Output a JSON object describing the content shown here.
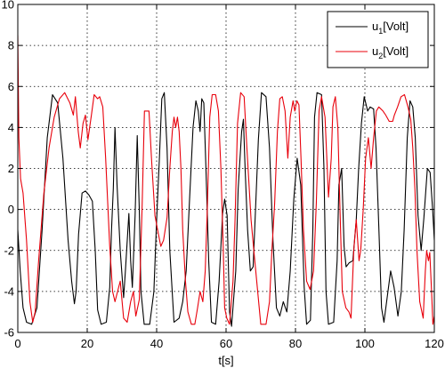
{
  "chart_data": {
    "type": "line",
    "title": "",
    "xlabel": "t[s]",
    "ylabel": "",
    "xlim": [
      0,
      120
    ],
    "ylim": [
      -6,
      10
    ],
    "xticks": [
      0,
      20,
      40,
      60,
      80,
      100,
      120
    ],
    "yticks": [
      -6,
      -4,
      -2,
      0,
      2,
      4,
      6,
      8,
      10
    ],
    "grid": true,
    "legend_position": "top-right",
    "series": [
      {
        "name": "u₁[Volt]",
        "legend_main": "u",
        "legend_sub": "1",
        "legend_suffix": "[Volt]",
        "color": "#000000",
        "points": [
          [
            0,
            -1.0
          ],
          [
            0.7,
            -3.0
          ],
          [
            1.5,
            -4.8
          ],
          [
            2.5,
            -5.5
          ],
          [
            4,
            -5.6
          ],
          [
            5.5,
            -4.8
          ],
          [
            7,
            -1.0
          ],
          [
            8.5,
            3.5
          ],
          [
            10,
            5.6
          ],
          [
            11.5,
            5.2
          ],
          [
            13,
            2.5
          ],
          [
            14.5,
            -1.5
          ],
          [
            15.5,
            -3.5
          ],
          [
            16.3,
            -4.6
          ],
          [
            16.8,
            -4.0
          ],
          [
            17.5,
            -1.2
          ],
          [
            18.5,
            0.8
          ],
          [
            19.5,
            0.9
          ],
          [
            20.5,
            0.7
          ],
          [
            21.5,
            0.4
          ],
          [
            22.3,
            -2.0
          ],
          [
            23,
            -4.9
          ],
          [
            24,
            -5.6
          ],
          [
            25.5,
            -5.5
          ],
          [
            26.5,
            -3.8
          ],
          [
            27,
            -1.0
          ],
          [
            27.5,
            1.0
          ],
          [
            28,
            4.0
          ],
          [
            28.6,
            1.2
          ],
          [
            29.5,
            -2.0
          ],
          [
            30.5,
            -4.3
          ],
          [
            31,
            -3.0
          ],
          [
            32,
            -0.2
          ],
          [
            32.5,
            -2.5
          ],
          [
            33,
            -3.8
          ],
          [
            33.8,
            -0.3
          ],
          [
            34.4,
            3.6
          ],
          [
            35,
            0.0
          ],
          [
            35.5,
            -4.0
          ],
          [
            36.4,
            -5.6
          ],
          [
            38,
            -5.6
          ],
          [
            39.2,
            -4.0
          ],
          [
            40,
            -0.5
          ],
          [
            40.8,
            2.5
          ],
          [
            41.5,
            5.4
          ],
          [
            42.2,
            5.7
          ],
          [
            43,
            3.0
          ],
          [
            43.8,
            -2.0
          ],
          [
            45,
            -5.5
          ],
          [
            46.5,
            -5.3
          ],
          [
            47.5,
            -4.5
          ],
          [
            48.5,
            -3.0
          ],
          [
            49.5,
            0.5
          ],
          [
            50.5,
            4.0
          ],
          [
            51.3,
            5.3
          ],
          [
            52,
            4.8
          ],
          [
            52.5,
            3.8
          ],
          [
            53,
            5.4
          ],
          [
            53.6,
            5.2
          ],
          [
            54.2,
            2.0
          ],
          [
            55,
            -2.5
          ],
          [
            55.8,
            -5.5
          ],
          [
            57,
            -5.6
          ],
          [
            58,
            -3.5
          ],
          [
            59,
            -0.2
          ],
          [
            59.6,
            0.5
          ],
          [
            60.3,
            -0.3
          ],
          [
            61,
            -5.0
          ],
          [
            61.6,
            -5.7
          ],
          [
            62.8,
            -3.0
          ],
          [
            63.5,
            1.0
          ],
          [
            64.5,
            3.8
          ],
          [
            65,
            4.4
          ],
          [
            65.5,
            2.0
          ],
          [
            66.2,
            -1.0
          ],
          [
            67,
            -3.0
          ],
          [
            67.8,
            -2.8
          ],
          [
            68.5,
            0.0
          ],
          [
            69.3,
            3.4
          ],
          [
            70.2,
            5.7
          ],
          [
            71.5,
            5.5
          ],
          [
            72.5,
            3.0
          ],
          [
            73.5,
            -1.5
          ],
          [
            74.5,
            -4.8
          ],
          [
            75.5,
            -5.2
          ],
          [
            76.5,
            -4.5
          ],
          [
            77.5,
            -5.0
          ],
          [
            78.5,
            -3.0
          ],
          [
            79.5,
            0.5
          ],
          [
            80.5,
            2.5
          ],
          [
            81.5,
            1.2
          ],
          [
            82.5,
            -3.8
          ],
          [
            83.2,
            -5.6
          ],
          [
            84.3,
            -5.4
          ],
          [
            85,
            -1.0
          ],
          [
            85.5,
            4.5
          ],
          [
            86.2,
            5.7
          ],
          [
            87.5,
            5.6
          ],
          [
            88.2,
            2.0
          ],
          [
            88.8,
            -4.0
          ],
          [
            89.5,
            -5.6
          ],
          [
            91,
            -5.5
          ],
          [
            92,
            -2.5
          ],
          [
            92.5,
            1.2
          ],
          [
            93.3,
            2.0
          ],
          [
            94,
            -1.8
          ],
          [
            94.6,
            -2.8
          ],
          [
            95.5,
            -2.6
          ],
          [
            96.5,
            -2.5
          ],
          [
            97.5,
            -0.5
          ],
          [
            98.2,
            2.0
          ],
          [
            99,
            4.2
          ],
          [
            99.8,
            5.5
          ],
          [
            100.8,
            4.8
          ],
          [
            101.5,
            5.0
          ],
          [
            102.5,
            4.9
          ],
          [
            103.2,
            3.0
          ],
          [
            104,
            -0.8
          ],
          [
            104.8,
            -4.8
          ],
          [
            105.5,
            -5.5
          ],
          [
            106.4,
            -4.3
          ],
          [
            107.4,
            -3.0
          ],
          [
            108.4,
            -3.8
          ],
          [
            109.5,
            -5.2
          ],
          [
            110.5,
            -4.0
          ],
          [
            111.3,
            -1.0
          ],
          [
            112.2,
            3.5
          ],
          [
            113,
            5.3
          ],
          [
            113.8,
            5.0
          ],
          [
            114.5,
            3.5
          ],
          [
            115.3,
            -0.3
          ],
          [
            116.2,
            -2.0
          ],
          [
            117,
            -0.4
          ],
          [
            118,
            2.0
          ],
          [
            118.8,
            1.8
          ],
          [
            119.5,
            0.0
          ],
          [
            120,
            -1.5
          ]
        ]
      },
      {
        "name": "u₂[Volt]",
        "legend_main": "u",
        "legend_sub": "2",
        "legend_suffix": "[Volt]",
        "color": "#e8000b",
        "points": [
          [
            0,
            8.5
          ],
          [
            0.3,
            3.5
          ],
          [
            0.8,
            1.5
          ],
          [
            1.5,
            0.8
          ],
          [
            2.5,
            -1.5
          ],
          [
            3.5,
            -4.5
          ],
          [
            4.3,
            -5.5
          ],
          [
            5,
            -5.0
          ],
          [
            6,
            -2.5
          ],
          [
            7.5,
            0.8
          ],
          [
            9,
            3.0
          ],
          [
            10.5,
            4.5
          ],
          [
            12,
            5.4
          ],
          [
            13.5,
            5.7
          ],
          [
            15,
            5.2
          ],
          [
            16,
            4.6
          ],
          [
            16.6,
            5.5
          ],
          [
            17.4,
            3.8
          ],
          [
            18,
            3.0
          ],
          [
            18.8,
            4.2
          ],
          [
            19.5,
            4.6
          ],
          [
            20.2,
            3.4
          ],
          [
            21.2,
            4.6
          ],
          [
            22,
            5.6
          ],
          [
            23,
            5.4
          ],
          [
            23.6,
            5.5
          ],
          [
            24.5,
            5.0
          ],
          [
            25.3,
            2.5
          ],
          [
            26.5,
            -1.8
          ],
          [
            27.3,
            -4.0
          ],
          [
            28,
            -4.5
          ],
          [
            29.5,
            -3.5
          ],
          [
            30.5,
            -5.3
          ],
          [
            31.5,
            -5.5
          ],
          [
            32.5,
            -4.5
          ],
          [
            33.3,
            -4.0
          ],
          [
            34,
            -5.2
          ],
          [
            35,
            -4.4
          ],
          [
            35.8,
            0.0
          ],
          [
            36.5,
            4.8
          ],
          [
            37.8,
            4.8
          ],
          [
            38.5,
            2.5
          ],
          [
            39.5,
            -0.3
          ],
          [
            40.5,
            -1.2
          ],
          [
            41.2,
            -1.8
          ],
          [
            42,
            -1.5
          ],
          [
            43,
            -0.4
          ],
          [
            43.8,
            2.0
          ],
          [
            44.5,
            3.8
          ],
          [
            45,
            4.5
          ],
          [
            45.5,
            4.0
          ],
          [
            46,
            4.5
          ],
          [
            46.5,
            3.8
          ],
          [
            47,
            2.0
          ],
          [
            47.5,
            -1.0
          ],
          [
            48.3,
            -3.5
          ],
          [
            49,
            -5.0
          ],
          [
            50,
            -5.6
          ],
          [
            51,
            -5.6
          ],
          [
            51.8,
            -4.8
          ],
          [
            52.5,
            -4.0
          ],
          [
            53.3,
            -4.5
          ],
          [
            54,
            -3.0
          ],
          [
            54.6,
            0.0
          ],
          [
            55.3,
            4.5
          ],
          [
            56,
            5.6
          ],
          [
            57,
            5.6
          ],
          [
            57.8,
            4.8
          ],
          [
            58.5,
            2.0
          ],
          [
            59.2,
            -2.0
          ],
          [
            59.6,
            -4.8
          ],
          [
            60.2,
            -5.3
          ],
          [
            61,
            -5.6
          ],
          [
            62,
            -3.5
          ],
          [
            62.6,
            -0.5
          ],
          [
            63.3,
            4.2
          ],
          [
            64.2,
            5.7
          ],
          [
            65.2,
            5.5
          ],
          [
            66,
            3.0
          ],
          [
            67.2,
            -0.5
          ],
          [
            68,
            -2.0
          ],
          [
            69,
            -3.8
          ],
          [
            70,
            -5.6
          ],
          [
            71.5,
            -5.6
          ],
          [
            72.5,
            -4.5
          ],
          [
            73.2,
            -2.0
          ],
          [
            74,
            0.3
          ],
          [
            74.8,
            3.8
          ],
          [
            75.5,
            5.4
          ],
          [
            76.2,
            5.5
          ],
          [
            77,
            4.8
          ],
          [
            77.8,
            2.5
          ],
          [
            78.5,
            4.5
          ],
          [
            79.3,
            5.3
          ],
          [
            79.8,
            4.8
          ],
          [
            80.4,
            5.3
          ],
          [
            81,
            5.1
          ],
          [
            81.6,
            2.5
          ],
          [
            82.3,
            -1.0
          ],
          [
            83.2,
            -3.5
          ],
          [
            84.2,
            -3.9
          ],
          [
            85.2,
            -3.0
          ],
          [
            86,
            0.3
          ],
          [
            86.8,
            4.8
          ],
          [
            87.5,
            5.5
          ],
          [
            88.5,
            4.5
          ],
          [
            89.5,
            0.6
          ],
          [
            90.3,
            2.5
          ],
          [
            90.8,
            5.0
          ],
          [
            91.5,
            5.5
          ],
          [
            92.2,
            4.0
          ],
          [
            92.8,
            0.2
          ],
          [
            93.5,
            -4.0
          ],
          [
            94.5,
            -4.8
          ],
          [
            95.4,
            -5.0
          ],
          [
            96,
            -5.3
          ],
          [
            96.8,
            -2.0
          ],
          [
            97.5,
            -0.5
          ],
          [
            98.3,
            -2.5
          ],
          [
            98.8,
            -2.0
          ],
          [
            99.5,
            0.0
          ],
          [
            100.2,
            2.5
          ],
          [
            101,
            3.5
          ],
          [
            101.8,
            2.0
          ],
          [
            102.5,
            3.5
          ],
          [
            103.3,
            4.8
          ],
          [
            104,
            5.0
          ],
          [
            105.2,
            4.8
          ],
          [
            106,
            4.6
          ],
          [
            107,
            4.3
          ],
          [
            108,
            4.3
          ],
          [
            108.5,
            4.6
          ],
          [
            109.4,
            5.0
          ],
          [
            110.4,
            5.5
          ],
          [
            111.4,
            5.6
          ],
          [
            112.4,
            5.0
          ],
          [
            113.2,
            4.4
          ],
          [
            113.8,
            3.0
          ],
          [
            114.4,
            1.0
          ],
          [
            115,
            -2.0
          ],
          [
            115.8,
            -4.5
          ],
          [
            116.8,
            -5.3
          ],
          [
            117.4,
            -3.0
          ],
          [
            117.8,
            -2.0
          ],
          [
            118.3,
            -2.5
          ],
          [
            118.7,
            -2.1
          ],
          [
            119.2,
            -4.0
          ],
          [
            119.6,
            -5.6
          ],
          [
            120,
            -5.2
          ]
        ]
      }
    ]
  }
}
